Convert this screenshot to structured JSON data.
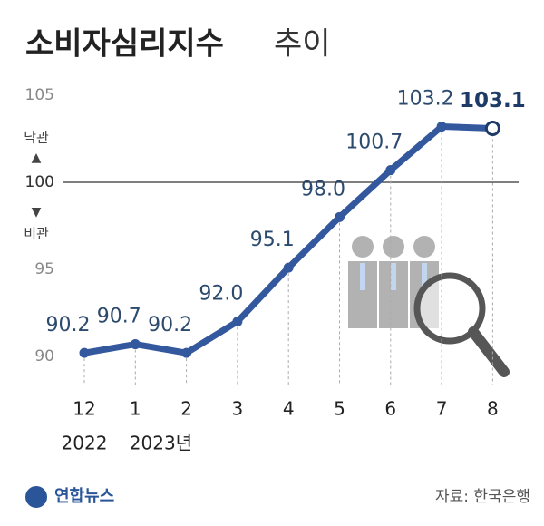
{
  "chart_data": {
    "type": "line",
    "title": "소비자심리지수",
    "subtitle": "추이",
    "categories": [
      "12",
      "1",
      "2",
      "3",
      "4",
      "5",
      "6",
      "7",
      "8"
    ],
    "year_labels": [
      "2022",
      "2023년"
    ],
    "series": [
      {
        "name": "소비자심리지수",
        "color": "#34589e",
        "values": [
          90.2,
          90.7,
          90.2,
          92.0,
          95.1,
          98.0,
          100.7,
          103.2,
          103.1
        ],
        "value_labels": [
          "90.2",
          "90.7",
          "90.2",
          "92.0",
          "95.1",
          "98.0",
          "100.7",
          "103.2",
          "103.1"
        ]
      }
    ],
    "ylim": [
      90,
      105
    ],
    "yticks": [
      90,
      95,
      100,
      105
    ],
    "reference_line": 100,
    "upper_label": "낙관",
    "lower_label": "비관",
    "source": "자료: 한국은행",
    "logo": "연합뉴스"
  }
}
